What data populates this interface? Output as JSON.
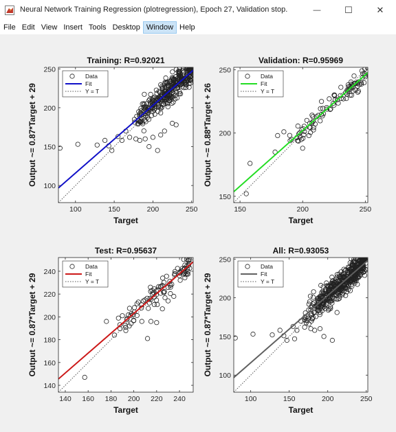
{
  "window": {
    "title": "Neural Network Training Regression (plotregression), Epoch 27, Validation stop.",
    "minimize_glyph": "—",
    "maximize_glyph": "☐",
    "close_glyph": "✕"
  },
  "menu": [
    "File",
    "Edit",
    "View",
    "Insert",
    "Tools",
    "Desktop",
    "Window",
    "Help"
  ],
  "menu_active": "Window",
  "colors": {
    "training_fit": "#1010c8",
    "validation_fit": "#22dd22",
    "test_fit": "#cc1818",
    "all_fit": "#606060",
    "ident_line": "#555555",
    "marker": "#222222"
  },
  "legend": {
    "data": "Data",
    "fit": "Fit",
    "ident": "Y = T"
  },
  "plots": [
    {
      "title": "Training: R=0.92021",
      "xlabel": "Target",
      "ylabel": "Output ~= 0.87*Target + 29",
      "fit_color": "#1010c8",
      "tick_labels_x": [
        "100",
        "150",
        "200",
        "250"
      ],
      "tick_labels_y": [
        "100",
        "150",
        "200",
        "250"
      ]
    },
    {
      "title": "Validation: R=0.95969",
      "xlabel": "Target",
      "ylabel": "Output ~= 0.88*Target + 26",
      "fit_color": "#22dd22",
      "tick_labels_x": [
        "150",
        "200",
        "250"
      ],
      "tick_labels_y": [
        "150",
        "200",
        "250"
      ]
    },
    {
      "title": "Test: R=0.95637",
      "xlabel": "Target",
      "ylabel": "Output ~= 0.87*Target + 29",
      "fit_color": "#cc1818",
      "tick_labels_x": [
        "140",
        "160",
        "180",
        "200",
        "220",
        "240"
      ],
      "tick_labels_y": [
        "140",
        "160",
        "180",
        "200",
        "220",
        "240"
      ]
    },
    {
      "title": "All: R=0.93053",
      "xlabel": "Target",
      "ylabel": "Output ~= 0.87*Target + 29",
      "fit_color": "#606060",
      "tick_labels_x": [
        "100",
        "150",
        "200",
        "250"
      ],
      "tick_labels_y": [
        "100",
        "150",
        "200",
        "250"
      ]
    }
  ],
  "chart_data": [
    {
      "type": "scatter",
      "title": "Training: R=0.92021",
      "xlabel": "Target",
      "ylabel": "Output ~= 0.87*Target + 29",
      "xlim": [
        78,
        252
      ],
      "ylim": [
        78,
        252
      ],
      "xticks": [
        100,
        150,
        200,
        250
      ],
      "yticks": [
        100,
        150,
        200,
        250
      ],
      "fit": {
        "slope": 0.87,
        "intercept": 29
      },
      "legend": [
        "Data",
        "Fit",
        "Y = T"
      ],
      "legend_position": "top-left",
      "outliers": [
        [
          80,
          148
        ],
        [
          103,
          153
        ],
        [
          128,
          152
        ],
        [
          138,
          158
        ],
        [
          143,
          151
        ],
        [
          147,
          145
        ],
        [
          155,
          163
        ],
        [
          160,
          158
        ],
        [
          165,
          170
        ],
        [
          170,
          162
        ],
        [
          178,
          160
        ],
        [
          183,
          158
        ],
        [
          190,
          160
        ],
        [
          195,
          150
        ],
        [
          200,
          162
        ],
        [
          206,
          145
        ],
        [
          210,
          165
        ],
        [
          215,
          170
        ],
        [
          225,
          180
        ],
        [
          230,
          178
        ]
      ],
      "cluster": {
        "x_range": [
          170,
          250
        ],
        "trend": "fit",
        "spread": 12,
        "count": 350
      },
      "generate_seed": 11
    },
    {
      "type": "scatter",
      "title": "Validation: R=0.95969",
      "xlabel": "Target",
      "ylabel": "Output ~= 0.88*Target + 26",
      "xlim": [
        145,
        252
      ],
      "ylim": [
        145,
        252
      ],
      "xticks": [
        150,
        200,
        250
      ],
      "yticks": [
        150,
        200,
        250
      ],
      "fit": {
        "slope": 0.88,
        "intercept": 26
      },
      "legend": [
        "Data",
        "Fit",
        "Y = T"
      ],
      "legend_position": "top-left",
      "outliers": [
        [
          155,
          152
        ],
        [
          158,
          176
        ],
        [
          178,
          185
        ],
        [
          180,
          198
        ],
        [
          185,
          201
        ],
        [
          190,
          194
        ],
        [
          196,
          194
        ],
        [
          200,
          188
        ],
        [
          205,
          198
        ],
        [
          215,
          225
        ],
        [
          225,
          222
        ]
      ],
      "cluster": {
        "x_range": [
          185,
          250
        ],
        "trend": "fit",
        "spread": 6,
        "count": 90
      },
      "generate_seed": 23
    },
    {
      "type": "scatter",
      "title": "Test: R=0.95637",
      "xlabel": "Target",
      "ylabel": "Output ~= 0.87*Target + 29",
      "xlim": [
        134,
        252
      ],
      "ylim": [
        134,
        252
      ],
      "xticks": [
        140,
        160,
        180,
        200,
        220,
        240
      ],
      "yticks": [
        140,
        160,
        180,
        200,
        220,
        240
      ],
      "fit": {
        "slope": 0.87,
        "intercept": 29
      },
      "legend": [
        "Data",
        "Fit",
        "Y = T"
      ],
      "legend_position": "top-left",
      "outliers": [
        [
          157,
          147
        ],
        [
          176,
          196
        ],
        [
          183,
          184
        ],
        [
          190,
          201
        ],
        [
          193,
          188
        ],
        [
          198,
          203
        ],
        [
          200,
          197
        ],
        [
          204,
          213
        ],
        [
          207,
          196
        ],
        [
          212,
          181
        ],
        [
          215,
          196
        ],
        [
          220,
          195
        ],
        [
          225,
          207
        ],
        [
          230,
          214
        ],
        [
          235,
          218
        ]
      ],
      "cluster": {
        "x_range": [
          180,
          250
        ],
        "trend": "fit",
        "spread": 7,
        "count": 90
      },
      "generate_seed": 37
    },
    {
      "type": "scatter",
      "title": "All: R=0.93053",
      "xlabel": "Target",
      "ylabel": "Output ~= 0.87*Target + 29",
      "xlim": [
        78,
        252
      ],
      "ylim": [
        78,
        252
      ],
      "xticks": [
        100,
        150,
        200,
        250
      ],
      "yticks": [
        100,
        150,
        200,
        250
      ],
      "fit": {
        "slope": 0.87,
        "intercept": 29
      },
      "legend": [
        "Data",
        "Fit",
        "Y = T"
      ],
      "legend_position": "top-left",
      "outliers": [
        [
          80,
          148
        ],
        [
          103,
          153
        ],
        [
          128,
          152
        ],
        [
          138,
          158
        ],
        [
          143,
          151
        ],
        [
          147,
          145
        ],
        [
          155,
          163
        ],
        [
          160,
          158
        ],
        [
          165,
          170
        ],
        [
          170,
          162
        ],
        [
          178,
          160
        ],
        [
          183,
          158
        ],
        [
          190,
          160
        ],
        [
          195,
          150
        ],
        [
          206,
          145
        ],
        [
          157,
          147
        ],
        [
          212,
          181
        ]
      ],
      "cluster": {
        "x_range": [
          165,
          250
        ],
        "trend": "fit",
        "spread": 12,
        "count": 500
      },
      "generate_seed": 53
    }
  ]
}
